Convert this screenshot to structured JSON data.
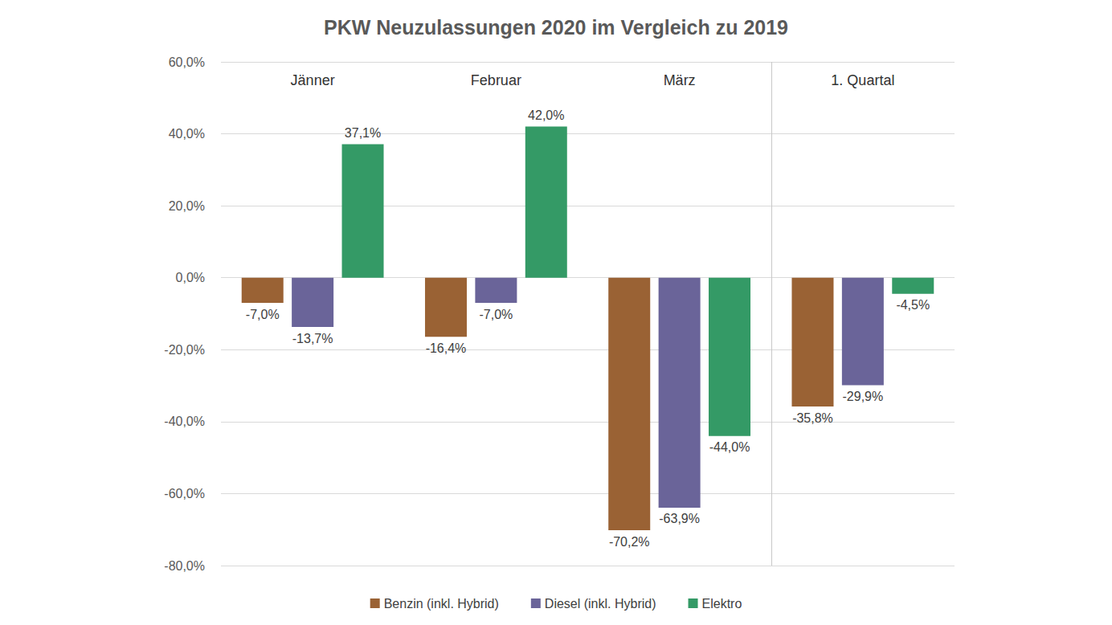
{
  "chart_data": {
    "type": "bar",
    "title": "PKW Neuzulassungen 2020 im Vergleich zu 2019",
    "categories": [
      "Jänner",
      "Februar",
      "März",
      "1. Quartal"
    ],
    "series": [
      {
        "name": "Benzin (inkl. Hybrid)",
        "color": "#9a6234",
        "values": [
          -7.0,
          -16.4,
          -70.2,
          -35.8
        ],
        "value_labels": [
          "-7,0%",
          "-16,4%",
          "-70,2%",
          "-35,8%"
        ]
      },
      {
        "name": "Diesel (inkl. Hybrid)",
        "color": "#6a6499",
        "values": [
          -13.7,
          -7.0,
          -63.9,
          -29.9
        ],
        "value_labels": [
          "-13,7%",
          "-7,0%",
          "-63,9%",
          "-29,9%"
        ]
      },
      {
        "name": "Elektro",
        "color": "#349a66",
        "values": [
          37.1,
          42.0,
          -44.0,
          -4.5
        ],
        "value_labels": [
          "37,1%",
          "42,0%",
          "-44,0%",
          "-4,5%"
        ]
      }
    ],
    "ylim": [
      -80,
      60
    ],
    "yticks": [
      {
        "value": -80,
        "label": "-80,0%"
      },
      {
        "value": -60,
        "label": "-60,0%"
      },
      {
        "value": -40,
        "label": "-40,0%"
      },
      {
        "value": -20,
        "label": "-20,0%"
      },
      {
        "value": 0,
        "label": "0,0%"
      },
      {
        "value": 20,
        "label": "20,0%"
      },
      {
        "value": 40,
        "label": "40,0%"
      },
      {
        "value": 60,
        "label": "60,0%"
      }
    ],
    "grid": true,
    "legend": "bottom",
    "data_labels": true
  }
}
